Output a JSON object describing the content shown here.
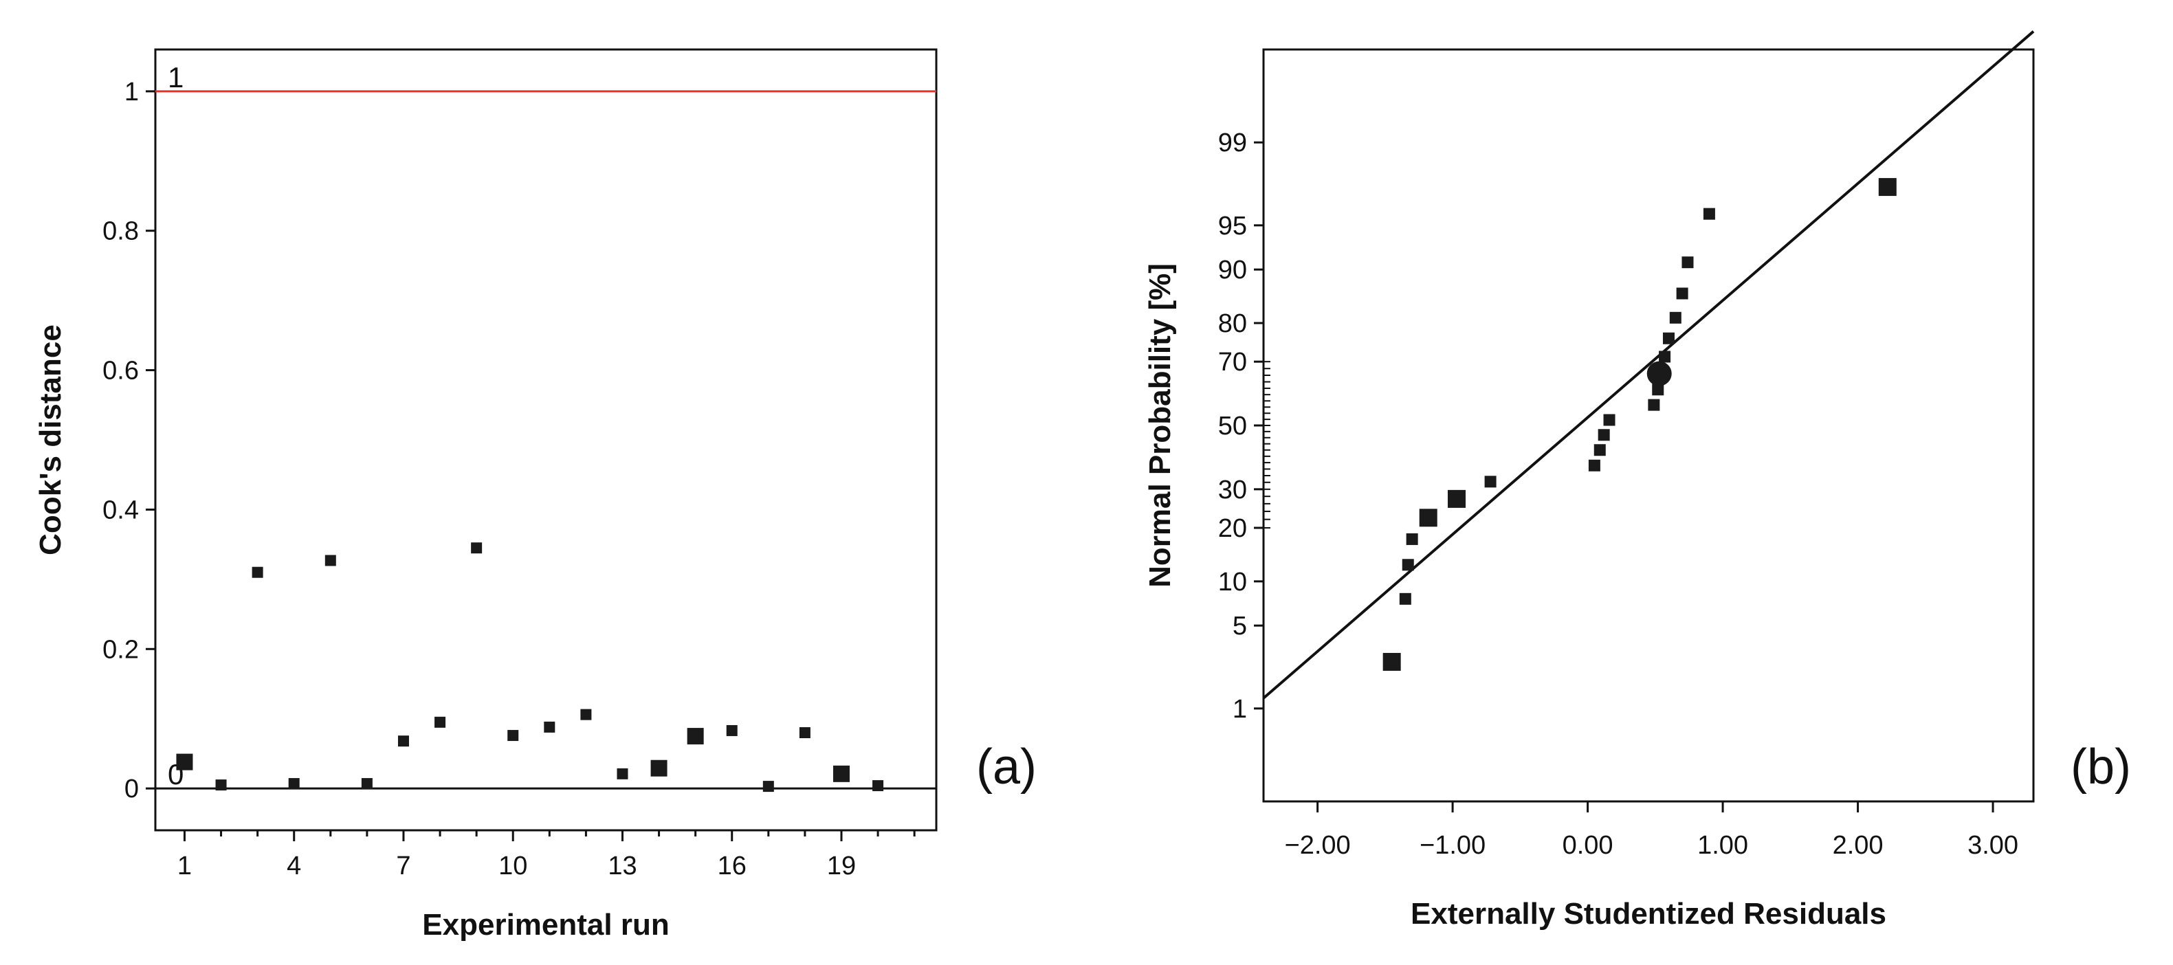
{
  "chart_data": [
    {
      "type": "scatter",
      "panel_label": "(a)",
      "xlabel": "Experimental run",
      "ylabel": "Cook's distance",
      "xlim": [
        0.2,
        21.6
      ],
      "ylim": [
        -0.06,
        1.06
      ],
      "xticks": [
        1,
        4,
        7,
        10,
        13,
        16,
        19
      ],
      "xtick_labels": [
        "1",
        "4",
        "7",
        "10",
        "13",
        "16",
        "19"
      ],
      "yticks": [
        0,
        0.2,
        0.4,
        0.6,
        0.8,
        1
      ],
      "ytick_labels": [
        "0",
        "0.2",
        "0.4",
        "0.6",
        "0.8",
        "1"
      ],
      "reference_lines": [
        {
          "y": 1,
          "label": "1",
          "color": "#e8322a"
        },
        {
          "y": 0,
          "label": "0",
          "color": "#111111"
        }
      ],
      "x": [
        1,
        2,
        3,
        4,
        5,
        6,
        7,
        8,
        9,
        10,
        11,
        12,
        13,
        14,
        15,
        16,
        17,
        18,
        19,
        20
      ],
      "y": [
        0.038,
        0.005,
        0.31,
        0.007,
        0.327,
        0.007,
        0.068,
        0.095,
        0.345,
        0.076,
        0.088,
        0.106,
        0.021,
        0.029,
        0.075,
        0.083,
        0.003,
        0.08,
        0.021,
        0.004
      ],
      "marker_weight": [
        2,
        1,
        1,
        1,
        1,
        1,
        1,
        1,
        1,
        1,
        1,
        1,
        1,
        2,
        2,
        1,
        1,
        1,
        2,
        1
      ]
    },
    {
      "type": "scatter",
      "panel_label": "(b)",
      "xlabel": "Externally Studentized Residuals",
      "ylabel": "Normal Probability [%]",
      "xlim": [
        -2.4,
        3.3
      ],
      "ylim_probability": [
        0.1,
        99.9
      ],
      "xticks": [
        -2,
        -1,
        0,
        1,
        2,
        3
      ],
      "xtick_labels": [
        "−2.00",
        "−1.00",
        "0.00",
        "1.00",
        "2.00",
        "3.00"
      ],
      "yticks": [
        1,
        5,
        10,
        20,
        30,
        50,
        70,
        80,
        90,
        95,
        99
      ],
      "ytick_labels": [
        "1",
        "5",
        "10",
        "20",
        "30",
        "50",
        "70",
        "80",
        "90",
        "95",
        "99"
      ],
      "x": [
        -1.45,
        -1.35,
        -1.33,
        -1.3,
        -1.18,
        -0.97,
        -0.72,
        0.05,
        0.09,
        0.12,
        0.16,
        0.49,
        0.52,
        0.53,
        0.57,
        0.6,
        0.65,
        0.7,
        0.74,
        0.9,
        2.22
      ],
      "y": [
        2.6,
        7.7,
        12.6,
        17.5,
        22.4,
        27.3,
        32.2,
        37.1,
        42.0,
        46.9,
        51.8,
        56.7,
        61.6,
        66.5,
        71.4,
        76.3,
        81.2,
        86.1,
        91.0,
        95.9,
        97.5
      ],
      "marker_weight": [
        2,
        1,
        1,
        1,
        2,
        2,
        1,
        1,
        1,
        1,
        1,
        1,
        1,
        3,
        1,
        1,
        1,
        1,
        1,
        1,
        2
      ],
      "fit_line": {
        "x": [
          -2.4,
          3.3
        ],
        "y": [
          1.25,
          99.94
        ]
      }
    }
  ]
}
